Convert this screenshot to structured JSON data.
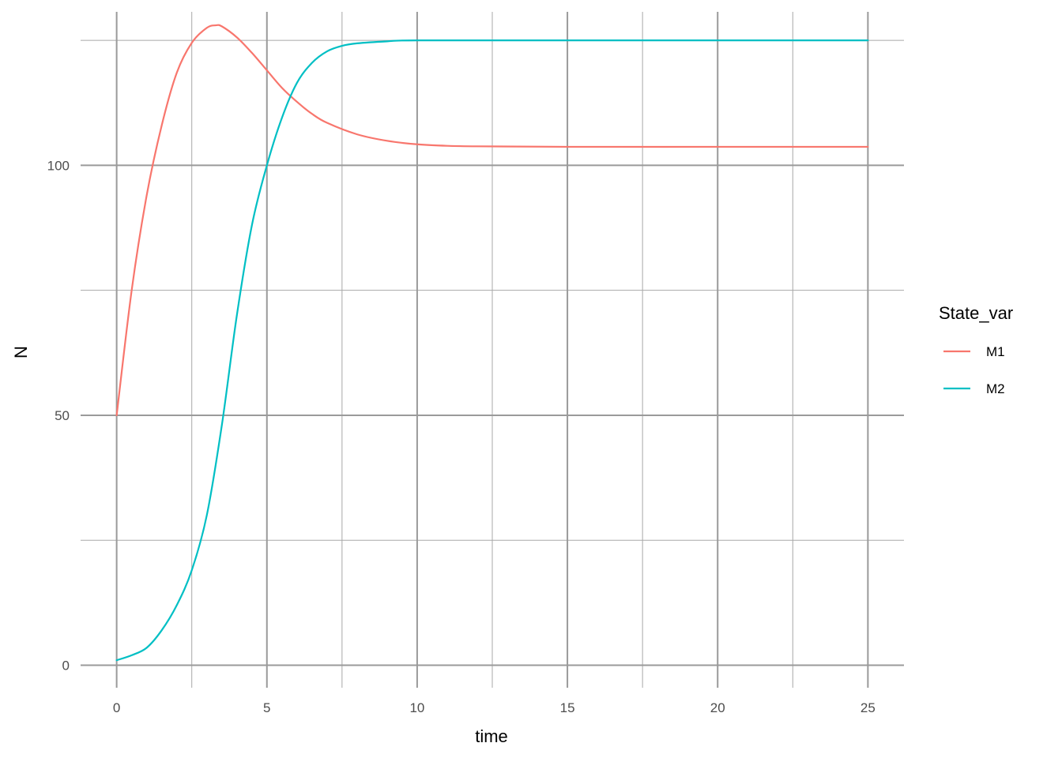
{
  "chart_data": {
    "type": "line",
    "title": "",
    "xlabel": "time",
    "ylabel": "N",
    "xlim": [
      -1.2,
      26.2
    ],
    "ylim": [
      -4.5,
      130.7
    ],
    "x_ticks": [
      0,
      5,
      10,
      15,
      20,
      25
    ],
    "x_minor_ticks": [
      2.5,
      7.5,
      12.5,
      17.5,
      22.5
    ],
    "y_ticks": [
      0,
      50,
      100
    ],
    "y_minor_ticks": [
      25,
      75,
      125
    ],
    "grid": true,
    "legend": {
      "title": "State_var",
      "position": "right"
    },
    "series": [
      {
        "name": "M1",
        "color": "#F8766D",
        "points": [
          [
            0,
            50
          ],
          [
            0.5,
            75
          ],
          [
            1,
            94
          ],
          [
            1.5,
            108
          ],
          [
            2,
            118.5
          ],
          [
            2.5,
            124.5
          ],
          [
            3,
            127.5
          ],
          [
            3.3,
            128
          ],
          [
            3.5,
            127.8
          ],
          [
            4,
            125.6
          ],
          [
            4.5,
            122.5
          ],
          [
            5,
            119
          ],
          [
            5.5,
            115.5
          ],
          [
            6,
            112.7
          ],
          [
            6.5,
            110.3
          ],
          [
            7,
            108.5
          ],
          [
            8,
            106.2
          ],
          [
            9,
            104.9
          ],
          [
            10,
            104.2
          ],
          [
            11,
            103.9
          ],
          [
            12,
            103.8
          ],
          [
            15,
            103.7
          ],
          [
            20,
            103.7
          ],
          [
            25,
            103.7
          ]
        ]
      },
      {
        "name": "M2",
        "color": "#00BFC4",
        "points": [
          [
            0,
            1
          ],
          [
            0.5,
            2
          ],
          [
            1,
            3.5
          ],
          [
            1.5,
            7
          ],
          [
            2,
            12
          ],
          [
            2.5,
            19
          ],
          [
            3,
            30
          ],
          [
            3.5,
            48
          ],
          [
            4,
            70
          ],
          [
            4.5,
            88
          ],
          [
            5,
            100
          ],
          [
            5.5,
            109.5
          ],
          [
            6,
            116.5
          ],
          [
            6.5,
            120.5
          ],
          [
            7,
            122.8
          ],
          [
            7.5,
            123.9
          ],
          [
            8,
            124.4
          ],
          [
            9,
            124.8
          ],
          [
            10,
            125
          ],
          [
            15,
            125
          ],
          [
            25,
            125
          ]
        ]
      }
    ]
  }
}
